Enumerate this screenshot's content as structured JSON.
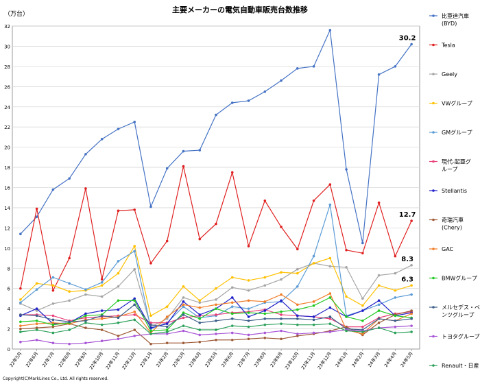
{
  "title": "主要メーカーの電気自動車販売台数推移",
  "unit_label": "（万台）",
  "copyright": "Copyright(C)MarkLines Co., Ltd. All rights reserved.",
  "chart_data": {
    "type": "line",
    "title": "主要メーカーの電気自動車販売台数推移",
    "ylabel": "（万台）",
    "xlabel": "",
    "ylim": [
      0,
      32
    ],
    "yticks": [
      0,
      2,
      4,
      6,
      8,
      10,
      12,
      14,
      16,
      18,
      20,
      22,
      24,
      26,
      28,
      30,
      32
    ],
    "grid": "horizontal",
    "legend_position": "right",
    "categories": [
      "22年5月",
      "22年6月",
      "22年7月",
      "22年8月",
      "22年9月",
      "22年10月",
      "22年11月",
      "22年12月",
      "23年1月",
      "23年2月",
      "23年3月",
      "23年4月",
      "23年5月",
      "23年6月",
      "23年7月",
      "23年8月",
      "23年9月",
      "23年10月",
      "23年11月",
      "23年12月",
      "24年1月",
      "24年2月",
      "24年3月",
      "24年4月",
      "24年5月"
    ],
    "annotations": [
      {
        "series": 0,
        "index": 24,
        "text": "30.2"
      },
      {
        "series": 1,
        "index": 24,
        "text": "12.7"
      },
      {
        "series": 2,
        "index": 24,
        "text": "8.3"
      },
      {
        "series": 3,
        "index": 24,
        "text": "6.3"
      }
    ],
    "series": [
      {
        "name": "比亜迪汽車\n(BYD)",
        "color": "#4472C4",
        "values": [
          11.4,
          13.1,
          15.8,
          16.9,
          19.3,
          20.8,
          21.8,
          22.5,
          14.1,
          17.9,
          19.6,
          19.7,
          23.2,
          24.4,
          24.6,
          25.5,
          26.6,
          27.8,
          28.0,
          31.6,
          17.8,
          10.5,
          27.2,
          28.0,
          30.2
        ]
      },
      {
        "name": "Tesla",
        "color": "#E02020",
        "values": [
          6.0,
          13.9,
          5.8,
          9.0,
          15.9,
          6.9,
          13.7,
          13.8,
          8.5,
          10.7,
          18.1,
          10.9,
          12.4,
          17.5,
          10.2,
          14.7,
          12.1,
          9.9,
          14.7,
          16.3,
          9.8,
          9.5,
          14.5,
          9.2,
          12.7
        ]
      },
      {
        "name": "Geely",
        "color": "#A5A5A5",
        "values": [
          4.5,
          3.8,
          4.5,
          4.8,
          5.4,
          5.2,
          6.2,
          7.9,
          2.2,
          3.0,
          5.1,
          4.6,
          4.9,
          6.1,
          5.8,
          6.3,
          6.9,
          7.9,
          8.5,
          8.2,
          8.1,
          5.0,
          7.3,
          7.5,
          8.3
        ]
      },
      {
        "name": "VWグループ",
        "color": "#FFC000",
        "values": [
          4.9,
          6.5,
          6.3,
          5.7,
          5.8,
          6.3,
          7.5,
          10.2,
          3.3,
          4.2,
          6.2,
          4.8,
          6.0,
          7.1,
          6.8,
          7.1,
          7.6,
          7.5,
          8.5,
          9.0,
          5.2,
          4.3,
          6.3,
          5.8,
          6.3
        ]
      },
      {
        "name": "GMグループ",
        "color": "#5B9BD5",
        "values": [
          4.6,
          5.9,
          7.1,
          6.5,
          5.9,
          6.6,
          8.7,
          9.7,
          2.0,
          2.6,
          4.2,
          3.1,
          3.3,
          4.2,
          4.0,
          4.6,
          4.7,
          6.2,
          9.2,
          14.3,
          3.3,
          3.8,
          4.4,
          5.1,
          5.4
        ]
      },
      {
        "name": "現代-起亜グ\nループ",
        "color": "#E8407A",
        "values": [
          3.4,
          3.4,
          3.3,
          2.8,
          3.1,
          3.2,
          3.3,
          3.4,
          2.6,
          2.6,
          3.1,
          3.3,
          3.4,
          3.6,
          3.7,
          3.9,
          3.4,
          3.3,
          3.2,
          3.0,
          2.2,
          2.2,
          3.1,
          3.5,
          3.7
        ]
      },
      {
        "name": "Stellantis",
        "color": "#1F1FC8",
        "values": [
          3.3,
          4.0,
          2.5,
          2.6,
          3.5,
          3.8,
          3.9,
          5.0,
          2.1,
          2.5,
          4.7,
          3.4,
          4.0,
          5.1,
          3.2,
          3.8,
          4.8,
          3.3,
          3.2,
          4.1,
          3.2,
          3.8,
          4.8,
          3.3,
          3.6
        ]
      },
      {
        "name": "奇瑞汽車\n(Chery)",
        "color": "#9E5A37",
        "values": [
          2.0,
          2.1,
          2.2,
          2.5,
          2.1,
          1.9,
          1.3,
          1.9,
          0.5,
          0.6,
          0.6,
          0.7,
          0.9,
          0.9,
          1.0,
          1.1,
          1.0,
          1.3,
          1.5,
          1.8,
          2.2,
          1.4,
          2.6,
          3.4,
          3.8
        ]
      },
      {
        "name": "GAC",
        "color": "#F07D28",
        "values": [
          2.3,
          2.5,
          2.6,
          2.5,
          2.9,
          3.0,
          3.2,
          3.7,
          1.6,
          3.2,
          4.4,
          4.1,
          4.4,
          4.6,
          4.8,
          4.7,
          5.4,
          4.4,
          4.7,
          5.5,
          1.9,
          1.5,
          3.0,
          2.8,
          3.5
        ]
      },
      {
        "name": "BMWグループ",
        "color": "#21C821",
        "values": [
          2.7,
          2.8,
          2.4,
          2.6,
          3.3,
          3.4,
          4.8,
          4.8,
          1.8,
          1.9,
          3.6,
          3.0,
          4.0,
          3.5,
          3.6,
          3.5,
          3.7,
          3.9,
          4.3,
          5.1,
          3.2,
          2.8,
          3.8,
          3.3,
          3.1
        ]
      },
      {
        "name": "メルセデス・ベ\nンツグループ",
        "color": "#3E5F8A",
        "values": [
          3.4,
          3.3,
          2.9,
          2.7,
          2.8,
          3.3,
          3.1,
          4.4,
          2.4,
          2.2,
          3.4,
          2.6,
          2.8,
          3.0,
          2.8,
          3.0,
          3.0,
          3.0,
          2.9,
          3.2,
          2.0,
          1.9,
          3.0,
          2.8,
          3.0
        ]
      },
      {
        "name": "トヨタグループ",
        "color": "#A855D6",
        "values": [
          0.7,
          0.9,
          0.6,
          0.5,
          0.6,
          0.8,
          1.0,
          1.3,
          1.5,
          1.5,
          1.8,
          1.4,
          1.5,
          1.6,
          1.4,
          1.6,
          1.8,
          1.5,
          1.6,
          1.7,
          1.9,
          1.8,
          2.1,
          2.2,
          2.3
        ]
      },
      {
        "name": "Renault・日産",
        "color": "#2CA05A",
        "values": [
          1.7,
          1.9,
          1.6,
          1.9,
          2.6,
          2.4,
          2.6,
          2.9,
          1.5,
          1.7,
          2.3,
          1.9,
          1.9,
          2.3,
          2.2,
          2.4,
          2.5,
          2.4,
          2.4,
          2.5,
          1.8,
          1.7,
          2.1,
          1.6,
          1.7
        ]
      }
    ]
  }
}
